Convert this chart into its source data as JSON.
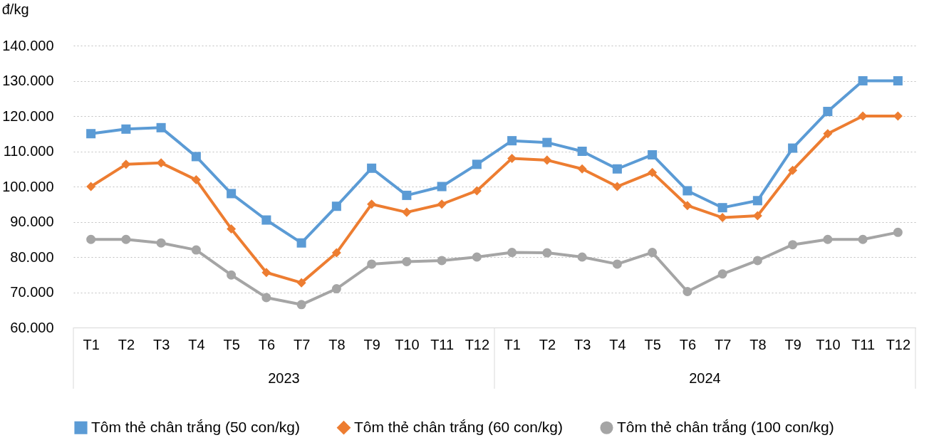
{
  "chart_data": {
    "type": "line",
    "ylabel": "đ/kg",
    "categories": [
      "T1",
      "T2",
      "T3",
      "T4",
      "T5",
      "T6",
      "T7",
      "T8",
      "T9",
      "T10",
      "T11",
      "T12",
      "T1",
      "T2",
      "T3",
      "T4",
      "T5",
      "T6",
      "T7",
      "T8",
      "T9",
      "T10",
      "T11",
      "T12"
    ],
    "annotations": [
      "2023",
      "2024"
    ],
    "series": [
      {
        "name": "Tôm thẻ chân trắng  (50 con/kg)",
        "color": "#5b9bd5",
        "marker": "square",
        "values": [
          115000,
          116300,
          116700,
          108500,
          98000,
          90500,
          84000,
          94400,
          105200,
          97500,
          100000,
          106300,
          113000,
          112500,
          110000,
          105000,
          109000,
          98800,
          94000,
          96000,
          110900,
          121300,
          130000,
          130000
        ]
      },
      {
        "name": "Tôm thẻ chân trắng  (60 con/kg)",
        "color": "#ed7d31",
        "marker": "diamond",
        "values": [
          100000,
          106300,
          106700,
          101900,
          88000,
          75600,
          72700,
          81200,
          95000,
          92700,
          95000,
          98800,
          108000,
          107500,
          105000,
          100000,
          104000,
          94600,
          91200,
          91700,
          104600,
          115000,
          120000,
          120000
        ]
      },
      {
        "name": "Tôm thẻ chân trắng  (100 con/kg)",
        "color": "#a5a5a5",
        "marker": "circle",
        "values": [
          85000,
          85000,
          84000,
          82000,
          74900,
          68500,
          66500,
          71000,
          78000,
          78700,
          79000,
          80000,
          81300,
          81200,
          80000,
          78000,
          81300,
          70200,
          75200,
          79000,
          83500,
          85000,
          85000,
          87000
        ]
      }
    ],
    "ylim": [
      60000,
      140000
    ],
    "yticks": [
      {
        "value": 60000,
        "label": "60.000"
      },
      {
        "value": 70000,
        "label": "70.000"
      },
      {
        "value": 80000,
        "label": "80.000"
      },
      {
        "value": 90000,
        "label": "90.000"
      },
      {
        "value": 100000,
        "label": "100.000"
      },
      {
        "value": 110000,
        "label": "110.000"
      },
      {
        "value": 120000,
        "label": "120.000"
      },
      {
        "value": 130000,
        "label": "130.000"
      },
      {
        "value": 140000,
        "label": "140.000"
      }
    ],
    "grid": "y",
    "legend": "bottom",
    "line_style": "solid"
  }
}
